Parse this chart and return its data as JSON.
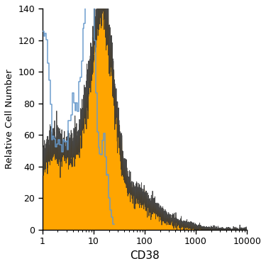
{
  "title": "",
  "xlabel": "CD38",
  "ylabel": "Relative Cell Number",
  "xlim": [
    1,
    10000
  ],
  "ylim": [
    0,
    140
  ],
  "yticks": [
    0,
    20,
    40,
    60,
    80,
    100,
    120,
    140
  ],
  "orange_color": "#FFA500",
  "orange_edge_color": "#333333",
  "blue_color": "#6699CC",
  "background_color": "#ffffff",
  "figsize": [
    3.75,
    3.75
  ],
  "dpi": 100
}
